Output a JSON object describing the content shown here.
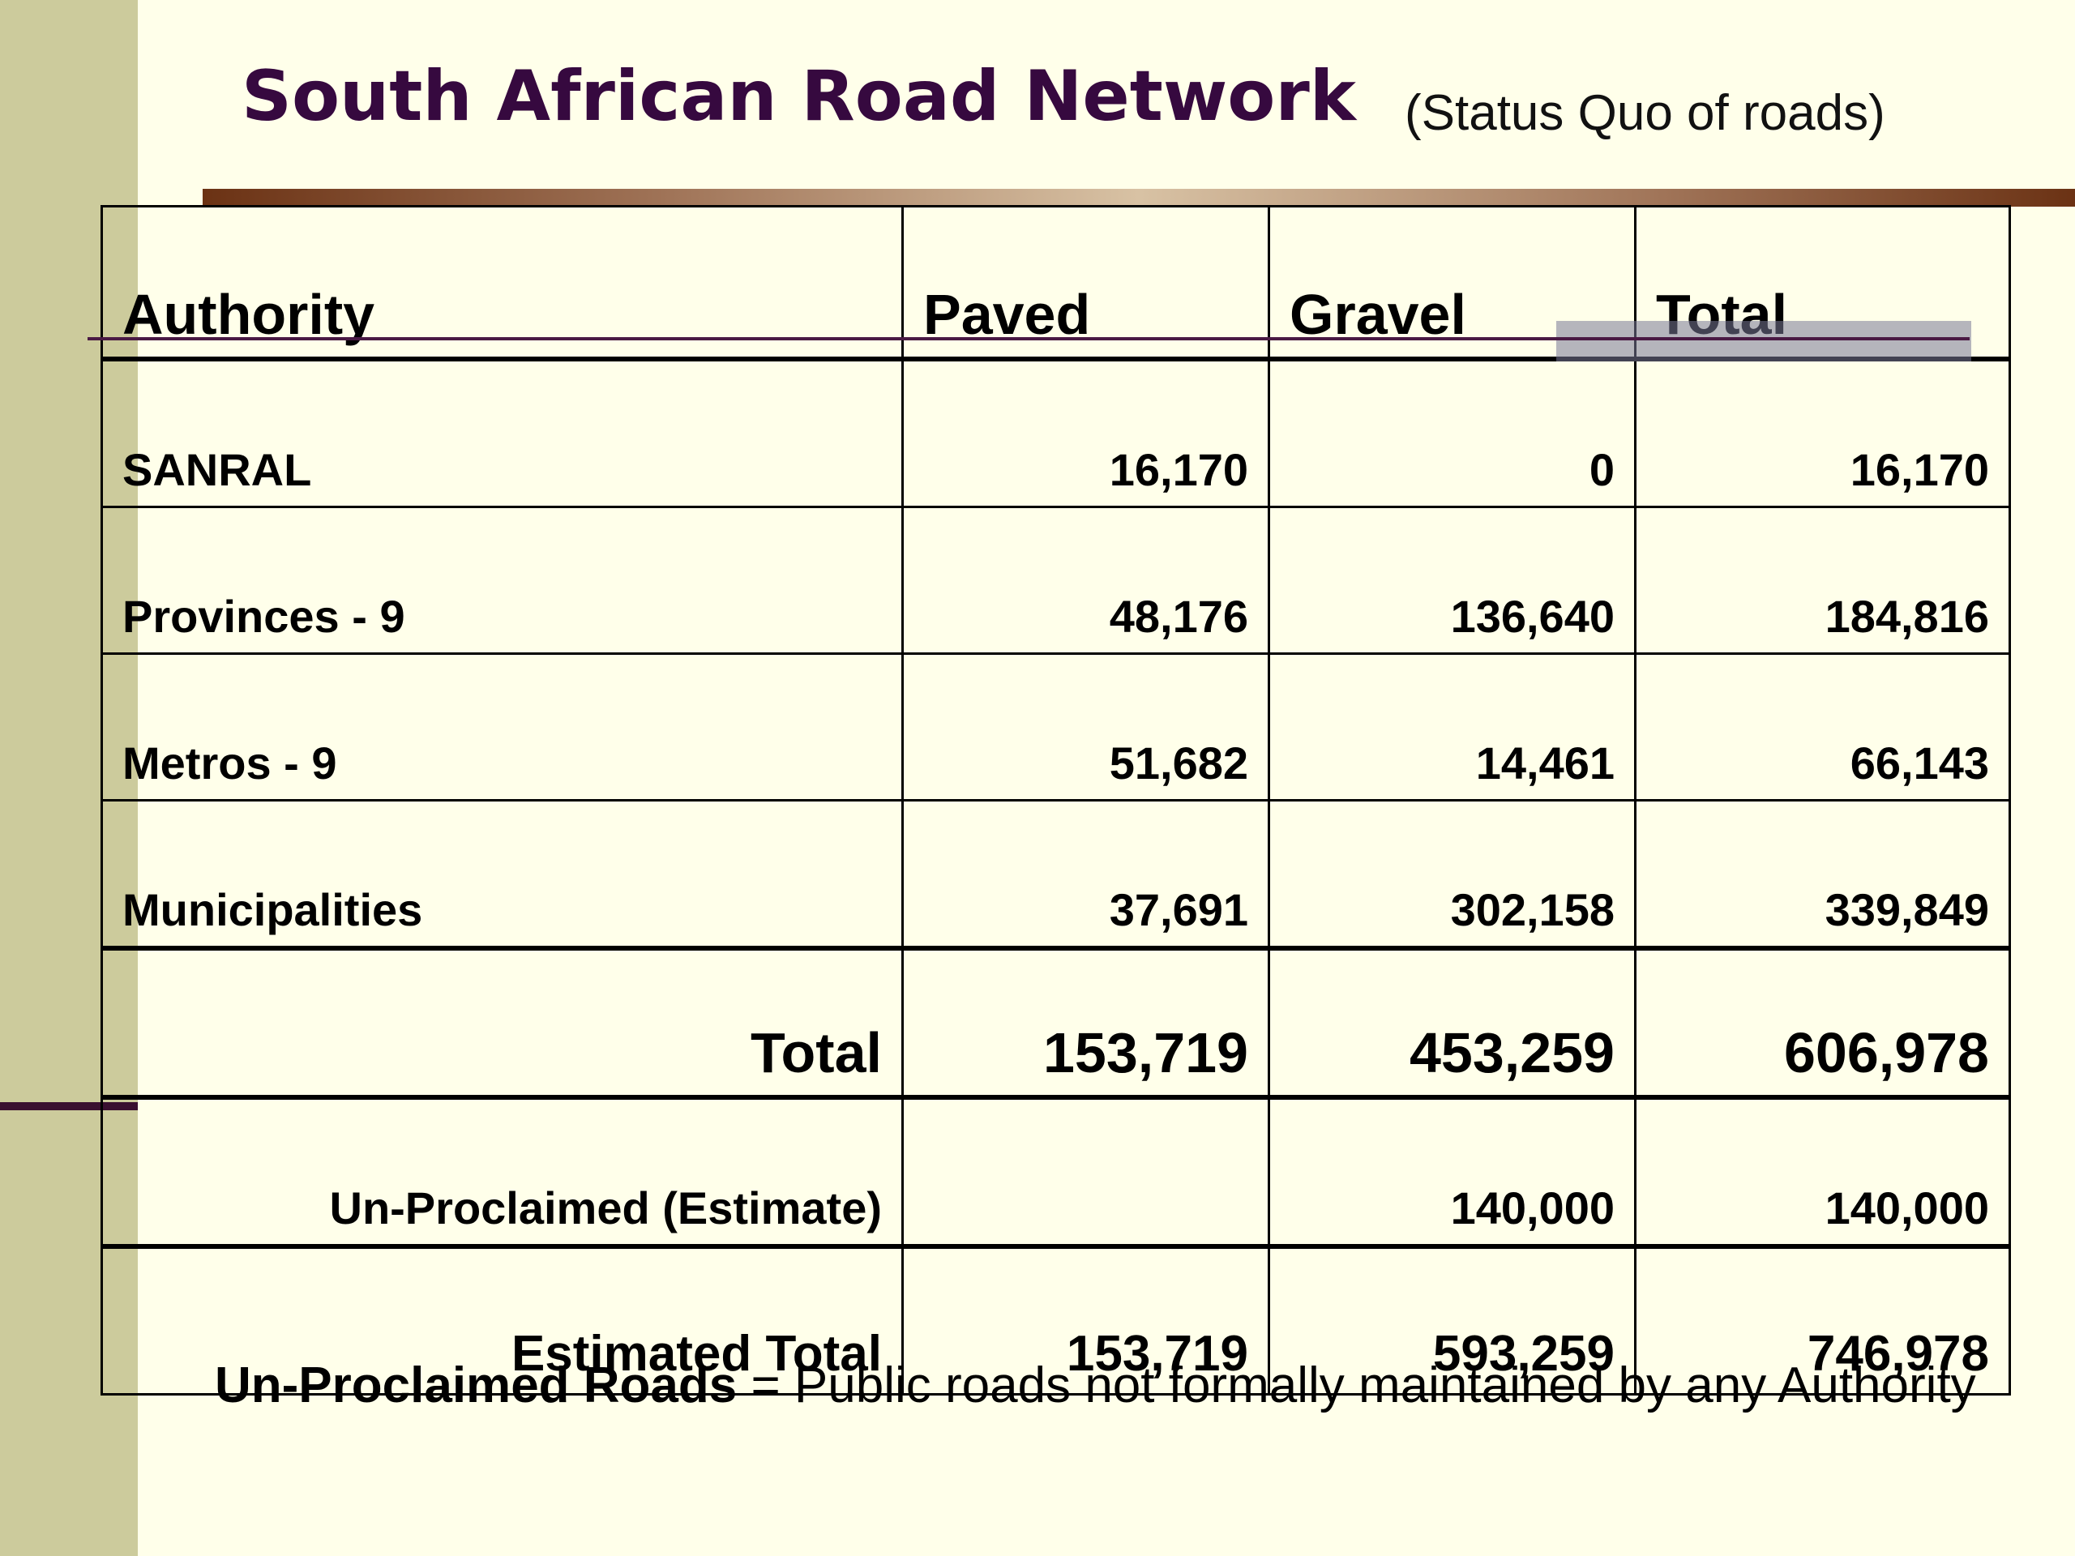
{
  "title": "South African Road Network",
  "subtitle": "(Status Quo of roads)",
  "table": {
    "headers": [
      "Authority",
      "Paved",
      "Gravel",
      "Total"
    ],
    "rows": [
      {
        "authority": "SANRAL",
        "paved": "16,170",
        "gravel": "0",
        "total": "16,170"
      },
      {
        "authority": "Provinces - 9",
        "paved": "48,176",
        "gravel": "136,640",
        "total": "184,816"
      },
      {
        "authority": "Metros - 9",
        "paved": "51,682",
        "gravel": "14,461",
        "total": "66,143"
      },
      {
        "authority": "Municipalities",
        "paved": "37,691",
        "gravel": "302,158",
        "total": "339,849"
      }
    ],
    "total": {
      "label": "Total",
      "paved": "153,719",
      "gravel": "453,259",
      "total": "606,978"
    },
    "unproclaimed": {
      "label": "Un-Proclaimed (Estimate)",
      "paved": "",
      "gravel": "140,000",
      "total": "140,000"
    },
    "estimated_total": {
      "label": "Estimated Total",
      "paved": "153,719",
      "gravel": "593,259",
      "total": "746,978"
    }
  },
  "footnote": {
    "term": "Un-Proclaimed Roads",
    "definition": " = Public roads not formally maintained by any Authority"
  },
  "colors": {
    "background": "#ffffea",
    "sidebar": "#cccb9c",
    "title": "#36093f",
    "rule": "#a07458"
  }
}
